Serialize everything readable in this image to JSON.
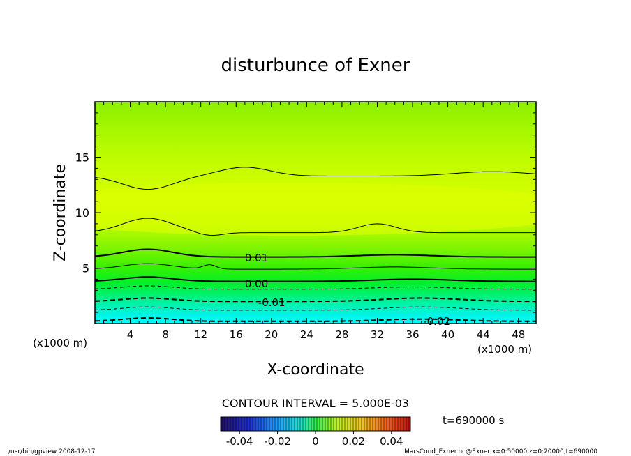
{
  "chart_data": {
    "type": "heatmap",
    "title": "disturbunce of Exner",
    "xlabel": "X-coordinate",
    "ylabel": "Z-coordinate",
    "x_unit_left": "(x1000 m)",
    "x_unit_right": "(x1000 m)",
    "xlim": [
      0,
      50
    ],
    "ylim": [
      0,
      20
    ],
    "x_ticks": [
      4,
      8,
      12,
      16,
      20,
      24,
      28,
      32,
      36,
      40,
      44,
      48
    ],
    "y_ticks": [
      5,
      10,
      15
    ],
    "contour_interval_text": "CONTOUR INTERVAL = 5.000E-03",
    "contour_labels": [
      {
        "text": "0.01",
        "x": 17,
        "z": 5.9
      },
      {
        "text": "0.00",
        "x": 17,
        "z": 3.6
      },
      {
        "text": "-0.01",
        "x": 18.5,
        "z": 1.9
      },
      {
        "text": "-0.02",
        "x": 37.2,
        "z": 0.2
      }
    ],
    "colorbar": {
      "min": -0.05,
      "max": 0.05,
      "ticks": [
        "-0.04",
        "-0.02",
        "0",
        "0.02",
        "0.04"
      ]
    },
    "time_label": "t=690000 s"
  },
  "footer": {
    "left": "/usr/bin/gpview   2008-12-17",
    "right": "MarsCond_Exner.nc@Exner,x=0:50000,z=0:20000,t=690000"
  },
  "colors": {
    "high": "#e8ff00",
    "mid": "#00ff3a",
    "low": "#00ffff"
  }
}
